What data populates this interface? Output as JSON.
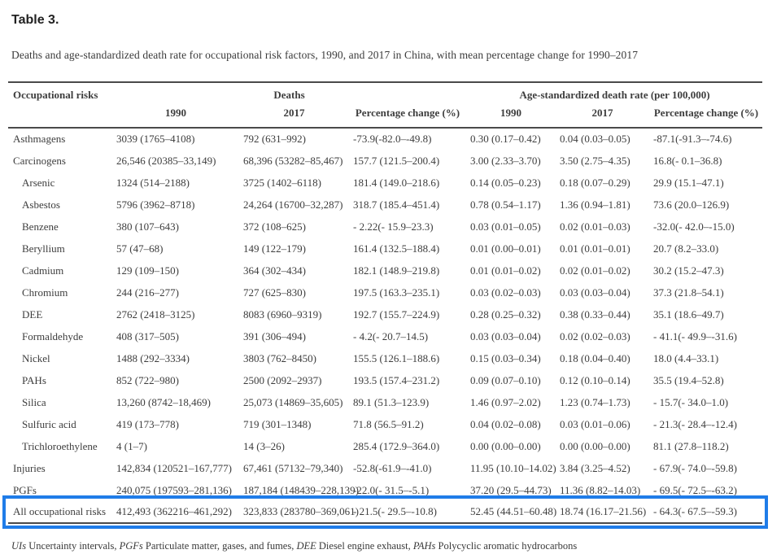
{
  "page": {
    "title": "Table 3.",
    "caption": "Deaths and age-standardized death rate for occupational risk factors, 1990, and 2017 in China, with mean percentage change for 1990–2017"
  },
  "table": {
    "col_groups": [
      {
        "label": "Occupational risks"
      },
      {
        "label": "Deaths"
      },
      {
        "label": "Age-standardized death rate (per 100,000)"
      }
    ],
    "sub_headers": [
      "1990",
      "2017",
      "Percentage change (%)",
      "1990",
      "2017",
      "Percentage change (%)"
    ],
    "rows": [
      {
        "label": "Asthmagens",
        "indent": false,
        "highlight": false,
        "cells": [
          "3039 (1765–4108)",
          "792 (631–992)",
          "-73.9(-82.0–-49.8)",
          "0.30 (0.17–0.42)",
          "0.04 (0.03–0.05)",
          "-87.1(-91.3–-74.6)"
        ]
      },
      {
        "label": "Carcinogens",
        "indent": false,
        "highlight": false,
        "cells": [
          "26,546 (20385–33,149)",
          "68,396 (53282–85,467)",
          "157.7 (121.5–200.4)",
          "3.00 (2.33–3.70)",
          "3.50 (2.75–4.35)",
          "16.8(- 0.1–36.8)"
        ]
      },
      {
        "label": "Arsenic",
        "indent": true,
        "highlight": false,
        "cells": [
          "1324 (514–2188)",
          "3725 (1402–6118)",
          "181.4 (149.0–218.6)",
          "0.14 (0.05–0.23)",
          "0.18 (0.07–0.29)",
          "29.9 (15.1–47.1)"
        ]
      },
      {
        "label": "Asbestos",
        "indent": true,
        "highlight": false,
        "cells": [
          "5796 (3962–8718)",
          "24,264 (16700–32,287)",
          "318.7 (185.4–451.4)",
          "0.78 (0.54–1.17)",
          "1.36 (0.94–1.81)",
          "73.6 (20.0–126.9)"
        ]
      },
      {
        "label": "Benzene",
        "indent": true,
        "highlight": false,
        "cells": [
          "380 (107–643)",
          "372 (108–625)",
          "- 2.22(- 15.9–23.3)",
          "0.03 (0.01–0.05)",
          "0.02 (0.01–0.03)",
          "-32.0(- 42.0–-15.0)"
        ]
      },
      {
        "label": "Beryllium",
        "indent": true,
        "highlight": false,
        "cells": [
          "57 (47–68)",
          "149 (122–179)",
          "161.4 (132.5–188.4)",
          "0.01 (0.00–0.01)",
          "0.01 (0.01–0.01)",
          "20.7 (8.2–33.0)"
        ]
      },
      {
        "label": "Cadmium",
        "indent": true,
        "highlight": false,
        "cells": [
          "129 (109–150)",
          "364 (302–434)",
          "182.1 (148.9–219.8)",
          "0.01 (0.01–0.02)",
          "0.02 (0.01–0.02)",
          "30.2 (15.2–47.3)"
        ]
      },
      {
        "label": "Chromium",
        "indent": true,
        "highlight": false,
        "cells": [
          "244 (216–277)",
          "727 (625–830)",
          "197.5 (163.3–235.1)",
          "0.03 (0.02–0.03)",
          "0.03 (0.03–0.04)",
          "37.3 (21.8–54.1)"
        ]
      },
      {
        "label": "DEE",
        "indent": true,
        "highlight": false,
        "cells": [
          "2762 (2418–3125)",
          "8083 (6960–9319)",
          "192.7 (155.7–224.9)",
          "0.28 (0.25–0.32)",
          "0.38 (0.33–0.44)",
          "35.1 (18.6–49.7)"
        ]
      },
      {
        "label": "Formaldehyde",
        "indent": true,
        "highlight": false,
        "cells": [
          "408 (317–505)",
          "391 (306–494)",
          "- 4.2(- 20.7–14.5)",
          "0.03 (0.03–0.04)",
          "0.02 (0.02–0.03)",
          "- 41.1(- 49.9–-31.6)"
        ]
      },
      {
        "label": "Nickel",
        "indent": true,
        "highlight": false,
        "cells": [
          "1488 (292–3334)",
          "3803 (762–8450)",
          "155.5 (126.1–188.6)",
          "0.15 (0.03–0.34)",
          "0.18 (0.04–0.40)",
          "18.0 (4.4–33.1)"
        ]
      },
      {
        "label": "PAHs",
        "indent": true,
        "highlight": false,
        "cells": [
          "852 (722–980)",
          "2500 (2092–2937)",
          "193.5 (157.4–231.2)",
          "0.09 (0.07–0.10)",
          "0.12 (0.10–0.14)",
          "35.5 (19.4–52.8)"
        ]
      },
      {
        "label": "Silica",
        "indent": true,
        "highlight": false,
        "cells": [
          "13,260 (8742–18,469)",
          "25,073 (14869–35,605)",
          "89.1 (51.3–123.9)",
          "1.46 (0.97–2.02)",
          "1.23 (0.74–1.73)",
          "- 15.7(- 34.0–1.0)"
        ]
      },
      {
        "label": "Sulfuric acid",
        "indent": true,
        "highlight": false,
        "cells": [
          "419 (173–778)",
          "719 (301–1348)",
          "71.8 (56.5–91.2)",
          "0.04 (0.02–0.08)",
          "0.03 (0.01–0.06)",
          "- 21.3(- 28.4–-12.4)"
        ]
      },
      {
        "label": "Trichloroethylene",
        "indent": true,
        "highlight": false,
        "cells": [
          "4 (1–7)",
          "14 (3–26)",
          "285.4 (172.9–364.0)",
          "0.00 (0.00–0.00)",
          "0.00 (0.00–0.00)",
          "81.1 (27.8–118.2)"
        ]
      },
      {
        "label": "Injuries",
        "indent": false,
        "highlight": false,
        "cells": [
          "142,834 (120521–167,777)",
          "67,461 (57132–79,340)",
          "-52.8(-61.9–-41.0)",
          "11.95 (10.10–14.02)",
          "3.84 (3.25–4.52)",
          "- 67.9(- 74.0–-59.8)"
        ]
      },
      {
        "label": "PGFs",
        "indent": false,
        "highlight": false,
        "cells": [
          "240,075 (197593–281,136)",
          "187,184 (148439–228,139)",
          "-22.0(- 31.5–-5.1)",
          "37.20 (29.5–44.73)",
          "11.36 (8.82–14.03)",
          "- 69.5(- 72.5–-63.2)"
        ]
      },
      {
        "label": "All occupational risks",
        "indent": false,
        "highlight": true,
        "cells": [
          "412,493 (362216–461,292)",
          "323,833 (283780–369,061)",
          "- 21.5(- 29.5–-10.8)",
          "52.45 (44.51–60.48)",
          "18.74 (16.17–21.56)",
          "- 64.3(- 67.5–-59.3)"
        ]
      }
    ]
  },
  "footnote": {
    "segments": [
      {
        "text": "UIs",
        "italic": true
      },
      {
        "text": " Uncertainty intervals, ",
        "italic": false
      },
      {
        "text": "PGFs",
        "italic": true
      },
      {
        "text": " Particulate matter, gases, and fumes, ",
        "italic": false
      },
      {
        "text": "DEE",
        "italic": true
      },
      {
        "text": " Diesel engine exhaust, ",
        "italic": false
      },
      {
        "text": "PAHs",
        "italic": true
      },
      {
        "text": " Polycyclic aromatic hydrocarbons",
        "italic": false
      }
    ]
  },
  "colors": {
    "highlight_box": "#1f7ce8",
    "text": "#3d3d3d",
    "rule": "#4a4a4a"
  }
}
